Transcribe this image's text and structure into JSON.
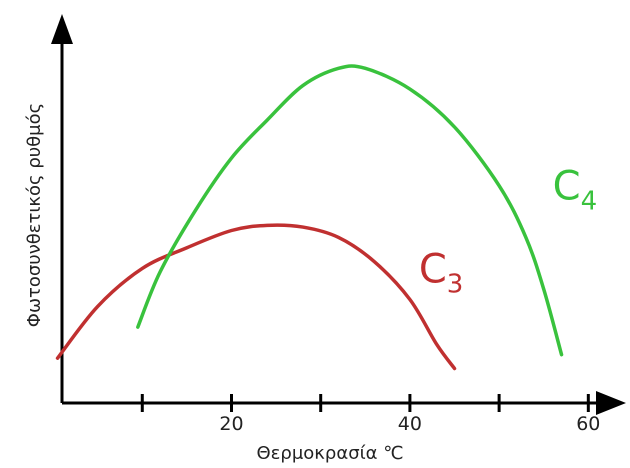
{
  "chart_data": {
    "type": "line",
    "xlabel": "Θερμοκρασία ℃",
    "ylabel": "Φωτοσυνθετικός ρυθμός",
    "x_ticks": [
      {
        "value": 10,
        "label": ""
      },
      {
        "value": 20,
        "label": "20"
      },
      {
        "value": 30,
        "label": ""
      },
      {
        "value": 40,
        "label": "40"
      },
      {
        "value": 50,
        "label": ""
      },
      {
        "value": 60,
        "label": "60"
      }
    ],
    "xlim": [
      1,
      64
    ],
    "ylim": [
      0,
      100
    ],
    "grid": false,
    "series": [
      {
        "name": "C3",
        "label_main": "C",
        "label_sub": "3",
        "color": "#c03030",
        "points": [
          [
            0.5,
            13
          ],
          [
            5,
            28
          ],
          [
            10,
            39
          ],
          [
            15,
            45
          ],
          [
            20,
            50
          ],
          [
            24,
            51.5
          ],
          [
            28,
            51
          ],
          [
            32,
            48
          ],
          [
            36,
            41
          ],
          [
            40,
            30
          ],
          [
            43,
            17
          ],
          [
            45,
            10
          ]
        ],
        "label_at": [
          41,
          35
        ]
      },
      {
        "name": "C4",
        "label_main": "C",
        "label_sub": "4",
        "color": "#39c23d",
        "points": [
          [
            9.5,
            22
          ],
          [
            12,
            38
          ],
          [
            16,
            56
          ],
          [
            20,
            71
          ],
          [
            24,
            82
          ],
          [
            28,
            92
          ],
          [
            32,
            97
          ],
          [
            35,
            97
          ],
          [
            40,
            91
          ],
          [
            45,
            80
          ],
          [
            50,
            63
          ],
          [
            53,
            48
          ],
          [
            55,
            33
          ],
          [
            57,
            14
          ]
        ],
        "label_at": [
          56,
          59
        ]
      }
    ]
  }
}
